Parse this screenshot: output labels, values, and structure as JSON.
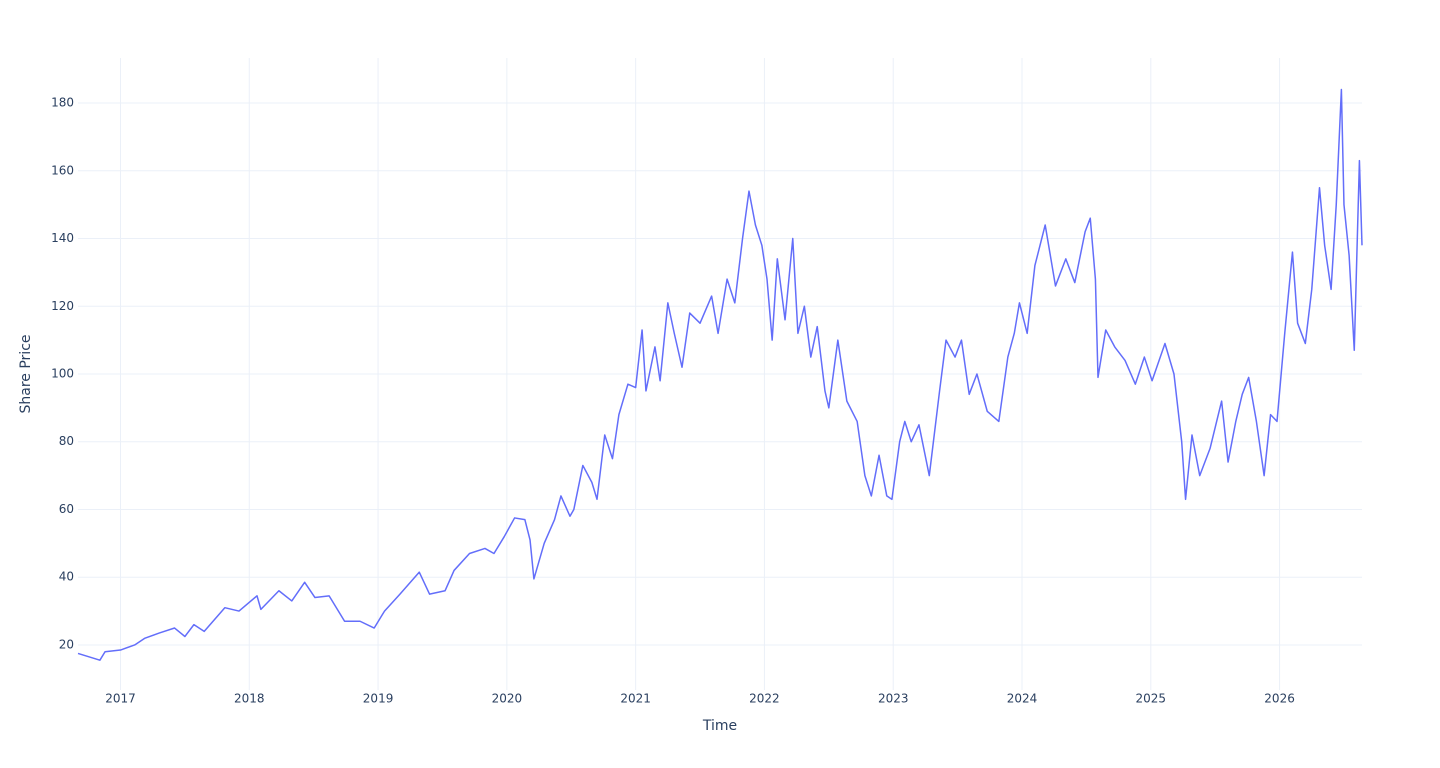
{
  "chart_data": {
    "type": "line",
    "x_label": "Time",
    "y_label": "Share Price",
    "xlim": [
      2016.67,
      2026.64
    ],
    "ylim": [
      6.7,
      193.3
    ],
    "xticks": [
      2017,
      2018,
      2019,
      2020,
      2021,
      2022,
      2023,
      2024,
      2025,
      2026
    ],
    "yticks": [
      20,
      40,
      60,
      80,
      100,
      120,
      140,
      160,
      180
    ],
    "grid": true,
    "x": [
      2016.67,
      2016.84,
      2016.88,
      2017.0,
      2017.11,
      2017.19,
      2017.3,
      2017.42,
      2017.5,
      2017.57,
      2017.65,
      2017.81,
      2017.92,
      2018.06,
      2018.09,
      2018.23,
      2018.33,
      2018.43,
      2018.51,
      2018.62,
      2018.74,
      2018.86,
      2018.97,
      2019.05,
      2019.17,
      2019.32,
      2019.4,
      2019.52,
      2019.59,
      2019.71,
      2019.83,
      2019.9,
      2019.98,
      2020.06,
      2020.14,
      2020.18,
      2020.21,
      2020.29,
      2020.37,
      2020.42,
      2020.49,
      2020.52,
      2020.59,
      2020.66,
      2020.7,
      2020.76,
      2020.82,
      2020.87,
      2020.94,
      2021.0,
      2021.05,
      2021.08,
      2021.15,
      2021.19,
      2021.25,
      2021.3,
      2021.36,
      2021.42,
      2021.5,
      2021.59,
      2021.64,
      2021.71,
      2021.77,
      2021.83,
      2021.88,
      2021.93,
      2021.98,
      2022.02,
      2022.06,
      2022.1,
      2022.16,
      2022.22,
      2022.26,
      2022.31,
      2022.36,
      2022.41,
      2022.47,
      2022.5,
      2022.57,
      2022.64,
      2022.72,
      2022.78,
      2022.83,
      2022.89,
      2022.95,
      2022.99,
      2023.05,
      2023.09,
      2023.14,
      2023.2,
      2023.28,
      2023.36,
      2023.41,
      2023.48,
      2023.53,
      2023.59,
      2023.65,
      2023.73,
      2023.82,
      2023.89,
      2023.94,
      2023.98,
      2024.04,
      2024.1,
      2024.18,
      2024.26,
      2024.34,
      2024.41,
      2024.49,
      2024.53,
      2024.57,
      2024.59,
      2024.65,
      2024.72,
      2024.8,
      2024.88,
      2024.95,
      2025.01,
      2025.11,
      2025.18,
      2025.24,
      2025.27,
      2025.32,
      2025.38,
      2025.46,
      2025.55,
      2025.6,
      2025.66,
      2025.71,
      2025.76,
      2025.82,
      2025.88,
      2025.93,
      2025.98,
      2026.04,
      2026.1,
      2026.14,
      2026.2,
      2026.25,
      2026.31,
      2026.35,
      2026.4,
      2026.44,
      2026.48,
      2026.5,
      2026.54,
      2026.58,
      2026.62,
      2026.64
    ],
    "series": [
      {
        "name": "Share Price",
        "color": "#636efa",
        "values": [
          17.5,
          15.5,
          18,
          18.5,
          20,
          22,
          23.5,
          25,
          22.5,
          26,
          24,
          31,
          30,
          34.5,
          30.5,
          36,
          33,
          38.5,
          34,
          34.5,
          27,
          27,
          25,
          30,
          35,
          41.5,
          35,
          36,
          42,
          47,
          48.5,
          47,
          52,
          57.5,
          57,
          51,
          39.5,
          50,
          57,
          64,
          58,
          60,
          73,
          68,
          63,
          82,
          75,
          88,
          97,
          96,
          113,
          95,
          108,
          98,
          121,
          112,
          102,
          118,
          115,
          123,
          112,
          128,
          121,
          140,
          154,
          144,
          138,
          128,
          110,
          134,
          116,
          140,
          112,
          120,
          105,
          114,
          95,
          90,
          110,
          92,
          86,
          70,
          64,
          76,
          64,
          63,
          80,
          86,
          80,
          85,
          70,
          95,
          110,
          105,
          110,
          94,
          100,
          89,
          86,
          105,
          112,
          121,
          112,
          132,
          144,
          126,
          134,
          127,
          142,
          146,
          128,
          99,
          113,
          108,
          104,
          97,
          105,
          98,
          109,
          100,
          80,
          63,
          82,
          70,
          78,
          92,
          74,
          86,
          94,
          99,
          86,
          70,
          88,
          86,
          112,
          136,
          115,
          109,
          125,
          155,
          138,
          125,
          150,
          184,
          150,
          135,
          107,
          163,
          138
        ]
      }
    ]
  }
}
